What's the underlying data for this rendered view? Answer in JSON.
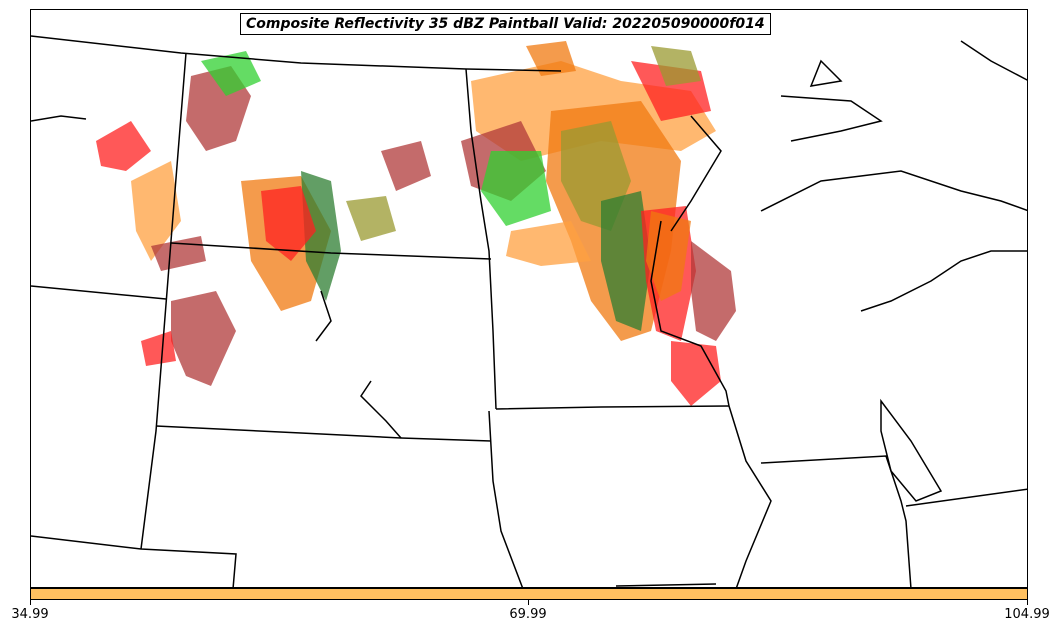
{
  "title": "Composite Reflectivity 35 dBZ Paintball Valid: 202205090000f014",
  "colorbar": {
    "color": "#ffc060",
    "ticks": [
      "34.99",
      "69.99",
      "104.99"
    ]
  },
  "palette": {
    "red": "#ff2020",
    "dark_red": "#b03a3a",
    "orange": "#f07a10",
    "light_orange": "#ffa040",
    "green": "#30d030",
    "dark_green": "#2e7d32",
    "olive": "#9a9a30",
    "boundary": "#000000"
  }
}
